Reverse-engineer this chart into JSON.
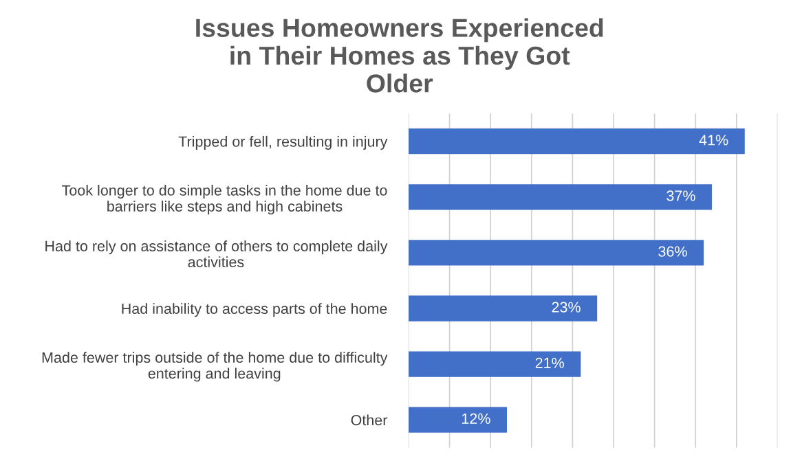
{
  "chart_data": {
    "type": "bar",
    "orientation": "horizontal",
    "title": "Issues Homeowners Experienced in Their Homes as They Got Older",
    "categories": [
      "Tripped or fell, resulting in injury",
      "Took longer to do simple tasks in the home due to barriers like steps and high cabinets",
      "Had to rely on assistance of others to complete daily activities",
      "Had inability to access parts of the home",
      "Made fewer trips outside of the home due to difficulty entering and leaving",
      "Other"
    ],
    "values": [
      41,
      37,
      36,
      23,
      21,
      12
    ],
    "value_labels": [
      "41%",
      "37%",
      "36%",
      "23%",
      "21%",
      "12%"
    ],
    "color": "#4270c8",
    "xlim": [
      0,
      45
    ],
    "xticks": [
      {
        "value": 0,
        "label": null
      },
      {
        "value": 5,
        "label": null
      },
      {
        "value": 10,
        "label": null
      },
      {
        "value": 15,
        "label": null
      },
      {
        "value": 20,
        "label": null
      },
      {
        "value": 25,
        "label": null
      },
      {
        "value": 30,
        "label": null
      },
      {
        "value": 35,
        "label": null
      },
      {
        "value": 40,
        "label": null
      },
      {
        "value": 45,
        "label": null
      }
    ],
    "tick_labels": "y",
    "grid": "x",
    "legend": false
  }
}
